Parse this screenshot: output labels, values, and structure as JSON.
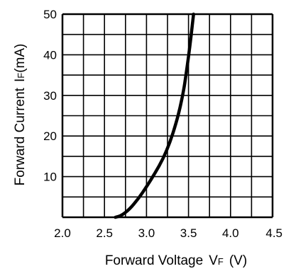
{
  "chart_data": {
    "type": "line",
    "title": "",
    "xlabel": "Forward Voltage",
    "xlabel_symbol": "V",
    "xlabel_subscript": "F",
    "xlabel_unit": "(V)",
    "ylabel": "Forward Current",
    "ylabel_symbol": "I",
    "ylabel_subscript": "F",
    "ylabel_unit": "(mA)",
    "xlim": [
      2.0,
      4.5
    ],
    "ylim": [
      0,
      50
    ],
    "x_ticks": [
      2.0,
      2.5,
      3.0,
      3.5,
      4.0,
      4.5
    ],
    "x_tick_labels": [
      "2.0",
      "2.5",
      "3.0",
      "3.5",
      "4.0",
      "4.5"
    ],
    "y_ticks": [
      10,
      20,
      30,
      40,
      50
    ],
    "y_tick_labels": [
      "10",
      "20",
      "30",
      "40",
      "50"
    ],
    "x_gridlines": [
      2.0,
      2.25,
      2.5,
      2.75,
      3.0,
      3.25,
      3.5,
      3.75,
      4.0,
      4.25,
      4.5
    ],
    "y_gridlines": [
      0,
      5,
      10,
      15,
      20,
      25,
      30,
      35,
      40,
      45,
      50
    ],
    "grid": true,
    "legend": "none",
    "series": [
      {
        "color": "#000000",
        "x": [
          2.63,
          2.7,
          2.8,
          2.9,
          3.0,
          3.1,
          3.2,
          3.28,
          3.35,
          3.4,
          3.44,
          3.47,
          3.5,
          3.53,
          3.56
        ],
        "y": [
          0,
          0.4,
          2.0,
          4.5,
          7.5,
          10.8,
          14.5,
          18.5,
          23,
          27,
          31,
          35,
          39.5,
          44.5,
          50
        ]
      }
    ]
  }
}
